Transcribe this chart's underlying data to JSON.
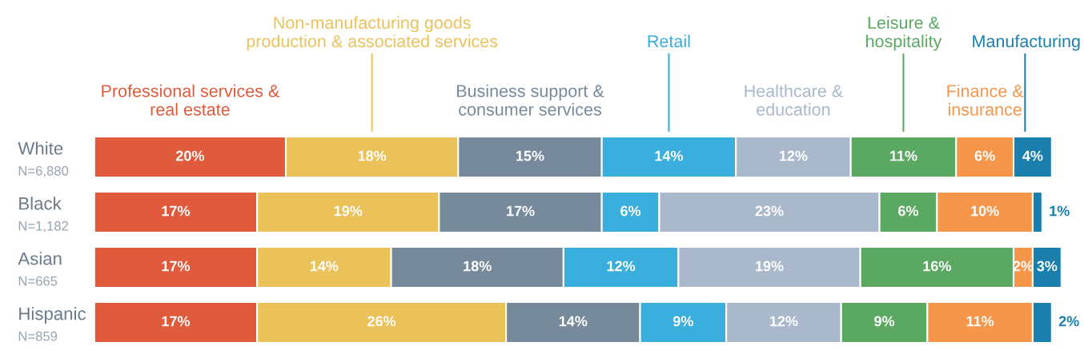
{
  "chart_data": {
    "type": "bar",
    "orientation": "horizontal",
    "stacked": true,
    "legend": false,
    "categories": [
      "White\nN=6,880",
      "Black\nN=1,182",
      "Asian\nN=665",
      "Hispanic\nN=859"
    ],
    "series": [
      {
        "name": "Professional services &\nreal estate",
        "color": "#e05a3c",
        "values": [
          20,
          17,
          17,
          17
        ],
        "value_labels": [
          "20%",
          "17%",
          "17%",
          "17%"
        ]
      },
      {
        "name": "Non-manufacturing goods\nproduction & associated services",
        "color": "#ebc15a",
        "values": [
          18,
          19,
          14,
          26
        ],
        "value_labels": [
          "18%",
          "19%",
          "14%",
          "26%"
        ]
      },
      {
        "name": "Business support &\nconsumer services",
        "color": "#768a9c",
        "values": [
          15,
          17,
          18,
          14
        ],
        "value_labels": [
          "15%",
          "17%",
          "18%",
          "14%"
        ]
      },
      {
        "name": "Retail",
        "color": "#3aaedc",
        "values": [
          14,
          6,
          12,
          9
        ],
        "value_labels": [
          "14%",
          "6%",
          "12%",
          "9%"
        ]
      },
      {
        "name": "Healthcare &\neducation",
        "color": "#a9b8ca",
        "values": [
          12,
          23,
          19,
          12
        ],
        "value_labels": [
          "12%",
          "23%",
          "19%",
          "12%"
        ]
      },
      {
        "name": "Leisure &\nhospitality",
        "color": "#5aa862",
        "values": [
          11,
          6,
          16,
          9
        ],
        "value_labels": [
          "11%",
          "6%",
          "16%",
          "9%"
        ]
      },
      {
        "name": "Finance &\ninsurance",
        "color": "#f5964a",
        "values": [
          6,
          10,
          2,
          11
        ],
        "value_labels": [
          "6%",
          "10%",
          "2%",
          "11%"
        ]
      },
      {
        "name": "Manufacturing",
        "color": "#1a7fad",
        "values": [
          4,
          1,
          3,
          2
        ],
        "value_labels": [
          "4%",
          "1%",
          "3%",
          "2%"
        ]
      }
    ]
  }
}
